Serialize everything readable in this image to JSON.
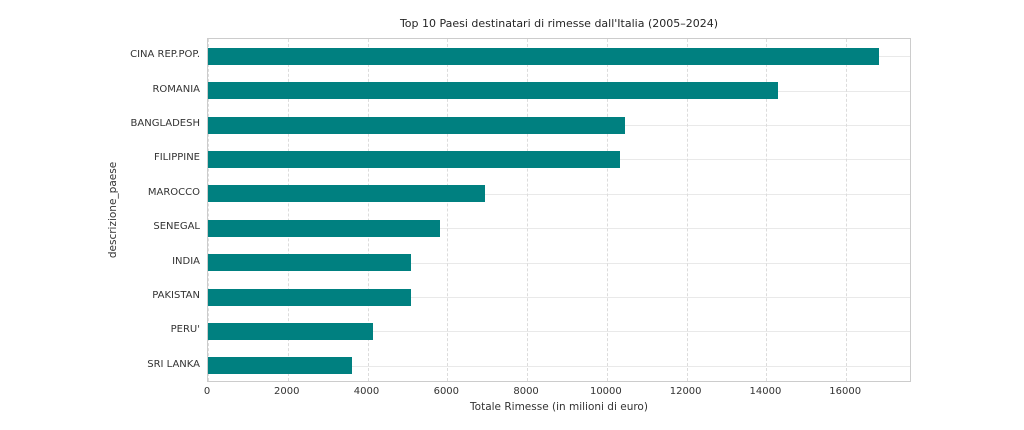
{
  "chart_data": {
    "type": "bar",
    "orientation": "horizontal",
    "title": "Top 10 Paesi destinatari di rimesse dall'Italia (2005–2024)",
    "xlabel": "Totale Rimesse (in milioni di euro)",
    "ylabel": "descrizione_paese",
    "categories": [
      "CINA REP.POP.",
      "ROMANIA",
      "BANGLADESH",
      "FILIPPINE",
      "MAROCCO",
      "SENEGAL",
      "INDIA",
      "PAKISTAN",
      "PERU'",
      "SRI LANKA"
    ],
    "values": [
      16830,
      14300,
      10450,
      10330,
      6950,
      5820,
      5100,
      5080,
      4140,
      3610
    ],
    "xticks": [
      0,
      2000,
      4000,
      6000,
      8000,
      10000,
      12000,
      14000,
      16000
    ],
    "xlim": [
      0,
      17650
    ],
    "grid": true,
    "legend": "none",
    "bar_color": "#008080",
    "plot_background": "#ffffff",
    "hgrid_color": "#e9e9e9",
    "vgrid_color": "#dcdcdc",
    "border_color": "#cccccc",
    "text_color": "#333333"
  }
}
